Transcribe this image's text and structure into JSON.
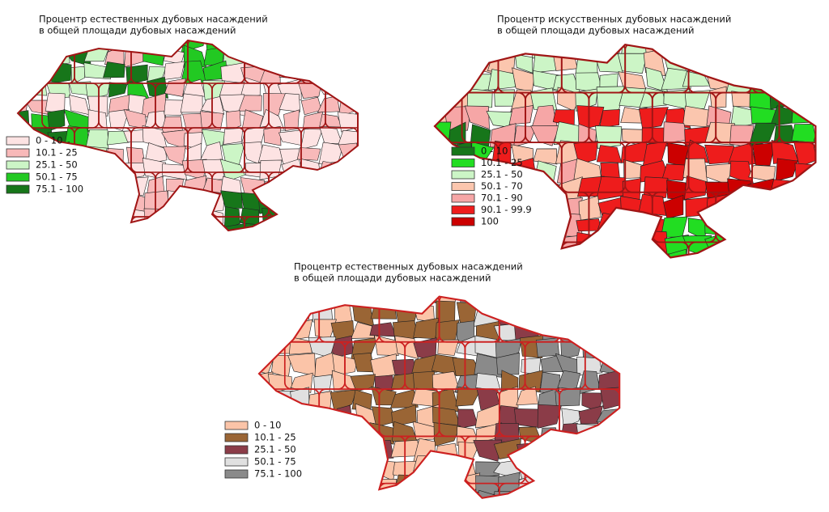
{
  "maps": [
    {
      "title_lines": [
        "Процентр естественных дубовых насаждений",
        "в общей площади дубовых насаждений"
      ],
      "legend": [
        {
          "label": "0 - 10",
          "color": "#fde3e3"
        },
        {
          "label": "10.1 - 25",
          "color": "#f8b9b9"
        },
        {
          "label": "25.1 - 50",
          "color": "#ccf5c6"
        },
        {
          "label": "50.1 - 75",
          "color": "#22c922"
        },
        {
          "label": "75.1 - 100",
          "color": "#17761a"
        }
      ]
    },
    {
      "title_lines": [
        "Процентр искусственных дубовых насаждений",
        "в общей площади дубовых насаждений"
      ],
      "legend": [
        {
          "label": "0 - 10",
          "color": "#17761a"
        },
        {
          "label": "10.1 - 25",
          "color": "#22dd22"
        },
        {
          "label": "25.1 - 50",
          "color": "#ccf5c6"
        },
        {
          "label": "50.1 - 70",
          "color": "#fbc6ae"
        },
        {
          "label": "70.1 - 90",
          "color": "#f6a6a6"
        },
        {
          "label": "90.1 - 99.9",
          "color": "#ee1c1c"
        },
        {
          "label": "100",
          "color": "#cc0000"
        }
      ]
    },
    {
      "title_lines": [
        "Процентр естественных дубовых насаждений",
        "в общей площади дубовых насаждений"
      ],
      "legend": [
        {
          "label": "0 - 10",
          "color": "#fbc4a8"
        },
        {
          "label": "10.1 - 25",
          "color": "#9a6535"
        },
        {
          "label": "25.1 - 50",
          "color": "#8b3c48"
        },
        {
          "label": "50.1 - 75",
          "color": "#e0e0e0"
        },
        {
          "label": "75.1 - 100",
          "color": "#8a8a8a"
        }
      ]
    }
  ]
}
